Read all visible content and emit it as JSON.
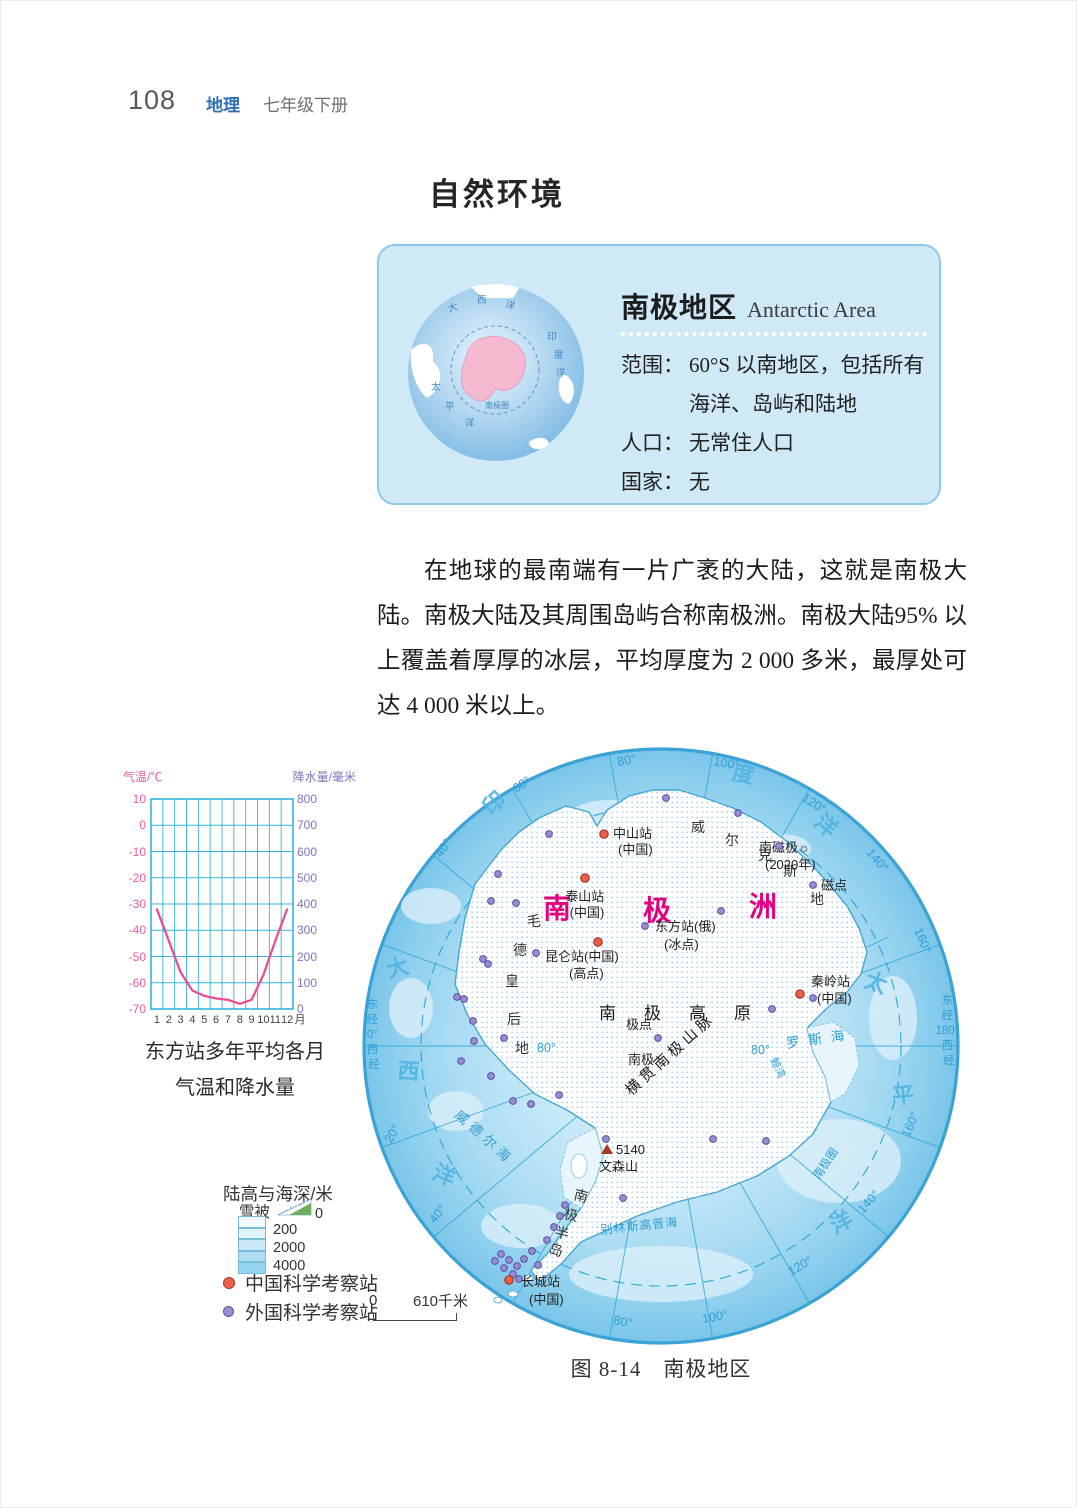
{
  "header": {
    "page_number": "108",
    "subject": "地理",
    "volume": "七年级下册"
  },
  "section": {
    "title": "自然环境"
  },
  "card": {
    "title_cn": "南极地区",
    "title_en": "Antarctic Area",
    "globe": {
      "atlantic": "大西洋",
      "indian": "印度洋",
      "pacific": "太平洋",
      "circle_label": "南极圈"
    },
    "rows": [
      {
        "label": "范围：",
        "value": "60°S 以南地区，包括所有海洋、岛屿和陆地"
      },
      {
        "label": "人口：",
        "value": "无常住人口"
      },
      {
        "label": "国家：",
        "value": "无"
      }
    ]
  },
  "paragraph": "在地球的最南端有一片广袤的大陆，这就是南极大陆。南极大陆及其周围岛屿合称南极洲。南极大陆95% 以上覆盖着厚厚的冰层，平均厚度为 2 000 多米，最厚处可达 4 000 米以上。",
  "chart_data": {
    "type": "line",
    "title": "东方站多年平均各月气温和降水量",
    "caption_line1": "东方站多年平均各月",
    "caption_line2": "气温和降水量",
    "y_left_label": "气温/℃",
    "y_right_label": "降水量/毫米",
    "x_unit": "月",
    "x_ticks": [
      "1",
      "2",
      "3",
      "4",
      "5",
      "6",
      "7",
      "8",
      "9",
      "10",
      "11",
      "12"
    ],
    "y_left_ticks": [
      "10",
      "0",
      "-10",
      "-20",
      "-30",
      "-40",
      "-50",
      "-60",
      "-70"
    ],
    "y_right_ticks": [
      "800",
      "700",
      "600",
      "500",
      "400",
      "300",
      "200",
      "100",
      "0"
    ],
    "ylim_left": [
      -70,
      10
    ],
    "ylim_right": [
      0,
      800
    ],
    "series": [
      {
        "name": "气温",
        "unit": "℃",
        "values": [
          -32,
          -44,
          -56,
          -63,
          -65,
          -66,
          -66.5,
          -68,
          -66.5,
          -57,
          -44,
          -32
        ]
      },
      {
        "name": "降水量",
        "unit": "毫米",
        "values": [
          0,
          0,
          0,
          0,
          0,
          0,
          0,
          0,
          0,
          0,
          0,
          0
        ]
      }
    ],
    "line_color": "#ec4d96",
    "grid_color": "#35b3dc"
  },
  "legend": {
    "title": "陆高与海深/米",
    "snow": "雪被",
    "depth_labels": [
      "0",
      "200",
      "2000",
      "4000"
    ],
    "depth_colors": [
      "#f2fafd",
      "#e0f2fa",
      "#c9e9f7",
      "#afdff4",
      "#95d4f0"
    ],
    "stations": [
      {
        "name": "中国科学考察站",
        "color": "#ec604a"
      },
      {
        "name": "外国科学考察站",
        "color": "#968cd2"
      }
    ],
    "scale_zero": "0",
    "scale_value": "610千米"
  },
  "map": {
    "continent": "南极洲",
    "plateau": "南极高原",
    "mountains": "横贯南极山脉",
    "pole_point": "极点",
    "pole": "南极",
    "vinson_elev": "5140",
    "vinson": "文森山",
    "magnetic_pole": "南磁极☼",
    "magnetic_year": "(2020年)",
    "magnetic_point": "磁点",
    "antarctic_circle": "南极圈",
    "lat80": "80°",
    "oceans": {
      "indian": "印度洋",
      "atlantic": "大西洋",
      "pacific": "太平洋"
    },
    "seas": {
      "ross": "罗斯海",
      "whale_bay": "鲸湾",
      "weddell": "威德尔海",
      "bellingshausen": "别林斯高晋海"
    },
    "lands": {
      "wilkes": "威尔克斯地",
      "queen_maud": "毛德皇后地",
      "peninsula": "南极半岛"
    },
    "stations": {
      "zhongshan": {
        "name": "中山站",
        "sub": "(中国)"
      },
      "taishan": {
        "name": "泰山站",
        "sub": "(中国)"
      },
      "kunlun": {
        "name": "昆仑站(中国)",
        "sub": "(高点)"
      },
      "vostok": {
        "name": "东方站(俄)",
        "sub": "(冰点)"
      },
      "qinling": {
        "name": "秦岭站",
        "sub": "(中国)"
      },
      "changcheng": {
        "name": "长城站",
        "sub": "(中国)"
      }
    },
    "rim": [
      "40°",
      "60°",
      "80°",
      "100°",
      "120°",
      "140°",
      "160°",
      "160°",
      "140°",
      "120°",
      "100°",
      "80°",
      "40°",
      "20°"
    ],
    "edge_left": [
      "东",
      "经",
      "0°",
      "西",
      "经"
    ],
    "edge_right": [
      "东",
      "经",
      "180°",
      "西",
      "经"
    ]
  },
  "figure": {
    "caption": "图 8-14　南极地区"
  }
}
